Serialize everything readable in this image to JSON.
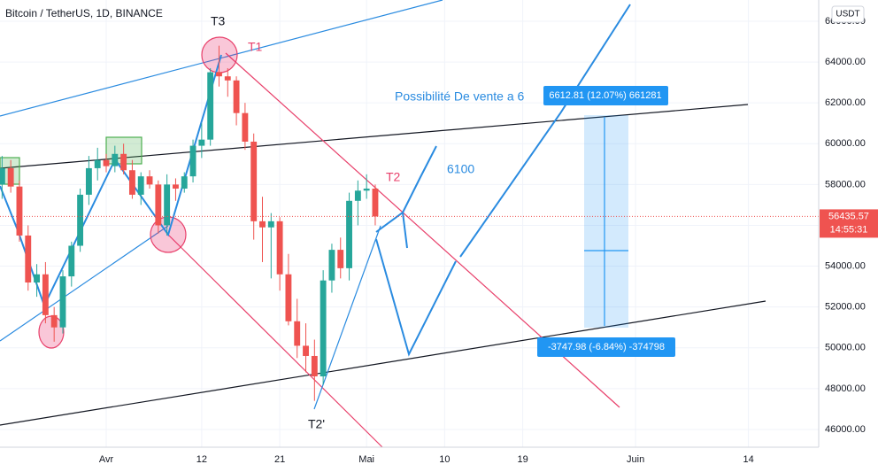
{
  "chart_data": {
    "type": "candlestick",
    "title": "Bitcoin / TetherUS, 1D, BINANCE",
    "currency": "USDT",
    "x": [
      -12,
      -11,
      -10,
      -9,
      -8,
      -7,
      -6,
      -5,
      -4,
      -3,
      -2,
      -1,
      0,
      1,
      2,
      3,
      4,
      5,
      6,
      7,
      8,
      9,
      10,
      11,
      12,
      13,
      14,
      15,
      16,
      17,
      18,
      19,
      20,
      21,
      22,
      23,
      24,
      25,
      26,
      27,
      28,
      29,
      30,
      31
    ],
    "open": [
      58000,
      58800,
      57900,
      55500,
      53200,
      53600,
      51600,
      51000,
      53500,
      55000,
      57500,
      58800,
      59200,
      58900,
      59500,
      58700,
      57500,
      58400,
      58000,
      56000,
      58000,
      57800,
      58400,
      59900,
      60200,
      63500,
      63300,
      63100,
      61500,
      60100,
      56200,
      55900,
      56200,
      53600,
      51300,
      50100,
      49600,
      48600,
      53300,
      54800,
      53900,
      57200,
      57700,
      57800
    ],
    "high": [
      59400,
      59200,
      58200,
      56000,
      54100,
      54200,
      52000,
      53800,
      55200,
      57800,
      59400,
      59800,
      59500,
      59900,
      60000,
      59200,
      58600,
      58700,
      58200,
      58500,
      58300,
      58600,
      60200,
      61000,
      63700,
      64800,
      63700,
      63300,
      62000,
      60500,
      57400,
      56600,
      56400,
      54600,
      52400,
      51200,
      50400,
      53800,
      55100,
      55400,
      57600,
      58200,
      58500,
      58000
    ],
    "low": [
      57300,
      57600,
      55200,
      52800,
      52500,
      51200,
      50300,
      50700,
      53000,
      54700,
      57000,
      58200,
      58600,
      58600,
      58500,
      57300,
      57000,
      57800,
      55600,
      55500,
      57200,
      57600,
      58100,
      59300,
      59900,
      62800,
      62300,
      60900,
      59700,
      55300,
      54200,
      53400,
      52800,
      51100,
      49500,
      48800,
      47400,
      48200,
      52700,
      53400,
      53300,
      56000,
      57300,
      56000
    ],
    "close": [
      58800,
      57900,
      55500,
      53200,
      53600,
      51600,
      51000,
      53500,
      55000,
      57500,
      58800,
      59200,
      58900,
      59500,
      58700,
      57500,
      58400,
      58000,
      56000,
      58000,
      57800,
      58400,
      59900,
      60200,
      63500,
      63300,
      63100,
      61500,
      60100,
      56200,
      55900,
      56200,
      53600,
      51300,
      50100,
      49600,
      48600,
      53300,
      54800,
      53900,
      57200,
      57700,
      57800,
      56435.57
    ],
    "up_color": "#26a69a",
    "down_color": "#ef5350",
    "last_price": 56435.57,
    "countdown": "14:55:31",
    "xlim": [
      -12.24,
      82.1
    ],
    "xticks": [
      {
        "value": 0,
        "label": "Avr"
      },
      {
        "value": 11,
        "label": "12"
      },
      {
        "value": 20,
        "label": "21"
      },
      {
        "value": 30,
        "label": "Mai"
      },
      {
        "value": 39,
        "label": "10"
      },
      {
        "value": 48,
        "label": "19"
      },
      {
        "value": 61,
        "label": "Juin"
      },
      {
        "value": 74,
        "label": "14"
      }
    ],
    "ylim": [
      45130,
      67040
    ],
    "yticks": [
      {
        "value": 46000,
        "label": "46000.00"
      },
      {
        "value": 48000,
        "label": "48000.00"
      },
      {
        "value": 50000,
        "label": "50000.00"
      },
      {
        "value": 52000,
        "label": "52000.00"
      },
      {
        "value": 54000,
        "label": "54000.00"
      },
      {
        "value": 56000,
        "label": "56000.00"
      },
      {
        "value": 58000,
        "label": "58000.00"
      },
      {
        "value": 60000,
        "label": "60000.00"
      },
      {
        "value": 62000,
        "label": "62000.00"
      },
      {
        "value": 64000,
        "label": "64000.00"
      },
      {
        "value": 66000,
        "label": "66000.00"
      }
    ],
    "grid": true,
    "annotations": {
      "t3": "T3",
      "t1": "T1",
      "t2": "T2",
      "t2_prime": "T2'",
      "target": "6100",
      "sell_note": "Possibilité De vente a 6",
      "upper_measure": "6612.81 (12.07%) 661281",
      "lower_measure": "-3747.98 (-6.84%) -374798"
    }
  }
}
